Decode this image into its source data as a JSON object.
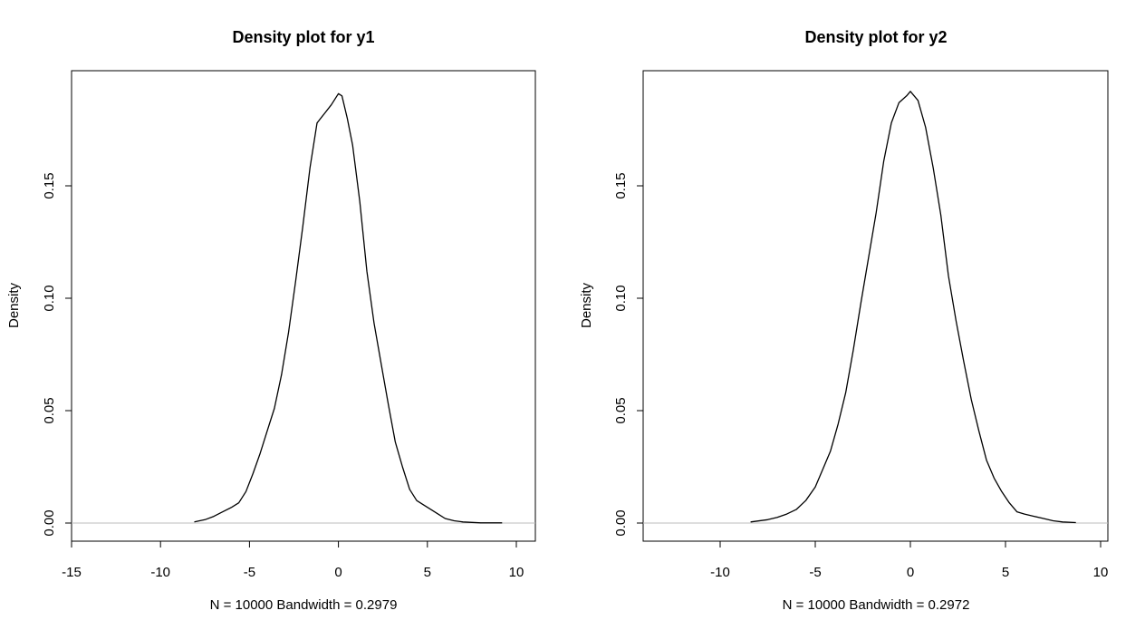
{
  "figure": {
    "background": "#ffffff",
    "line_color": "#000000",
    "baseline_color": "#bebebe"
  },
  "chart_data": [
    {
      "type": "line",
      "title": "Density plot for y1",
      "xlabel": "N = 10000   Bandwidth = 0.2979",
      "ylabel": "Density",
      "xlim": [
        -15,
        10
      ],
      "ylim": [
        0,
        0.19
      ],
      "xticks": [
        -15,
        -10,
        -5,
        0,
        5,
        10
      ],
      "xtick_labels": [
        "-15",
        "-10",
        "-5",
        "0",
        "5",
        "10"
      ],
      "yticks": [
        0.0,
        0.05,
        0.1,
        0.15
      ],
      "ytick_labels": [
        "0.00",
        "0.05",
        "0.10",
        "0.15"
      ],
      "grid": false,
      "series": [
        {
          "x": [
            -8.1,
            -7.5,
            -7.0,
            -6.5,
            -6.0,
            -5.6,
            -5.2,
            -4.8,
            -4.4,
            -4.0,
            -3.6,
            -3.2,
            -2.8,
            -2.4,
            -2.0,
            -1.6,
            -1.2,
            -0.8,
            -0.4,
            0.0,
            0.2,
            0.5,
            0.8,
            1.2,
            1.6,
            2.0,
            2.4,
            2.8,
            3.2,
            3.6,
            4.0,
            4.4,
            4.8,
            5.2,
            5.6,
            6.0,
            6.5,
            7.0,
            7.5,
            8.0,
            8.5,
            9.2
          ],
          "y": [
            0.0005,
            0.0015,
            0.003,
            0.005,
            0.007,
            0.009,
            0.014,
            0.022,
            0.031,
            0.041,
            0.051,
            0.066,
            0.085,
            0.108,
            0.132,
            0.158,
            0.178,
            0.182,
            0.186,
            0.191,
            0.19,
            0.18,
            0.168,
            0.143,
            0.112,
            0.089,
            0.071,
            0.053,
            0.036,
            0.025,
            0.015,
            0.01,
            0.008,
            0.006,
            0.004,
            0.002,
            0.001,
            0.0005,
            0.0003,
            0.0001,
            0.0001,
            0.0001
          ]
        }
      ]
    },
    {
      "type": "line",
      "title": "Density plot for y2",
      "xlabel": "N = 10000   Bandwidth = 0.2972",
      "ylabel": "Density",
      "xlim": [
        -14.5,
        10
      ],
      "ylim": [
        0,
        0.19
      ],
      "xticks": [
        -10,
        -5,
        0,
        5,
        10
      ],
      "xtick_labels": [
        "-10",
        "-5",
        "0",
        "5",
        "10"
      ],
      "yticks": [
        0.0,
        0.05,
        0.1,
        0.15
      ],
      "ytick_labels": [
        "0.00",
        "0.05",
        "0.10",
        "0.15"
      ],
      "grid": false,
      "series": [
        {
          "x": [
            -8.4,
            -7.5,
            -7.0,
            -6.5,
            -6.0,
            -5.5,
            -5.0,
            -4.6,
            -4.2,
            -3.8,
            -3.4,
            -3.0,
            -2.6,
            -2.2,
            -1.8,
            -1.4,
            -1.0,
            -0.6,
            -0.2,
            0.0,
            0.4,
            0.8,
            1.2,
            1.6,
            2.0,
            2.4,
            2.8,
            3.2,
            3.6,
            4.0,
            4.4,
            4.8,
            5.2,
            5.6,
            6.0,
            6.5,
            7.0,
            7.5,
            8.0,
            8.7
          ],
          "y": [
            0.0005,
            0.0015,
            0.0025,
            0.004,
            0.006,
            0.01,
            0.016,
            0.024,
            0.032,
            0.044,
            0.058,
            0.077,
            0.098,
            0.118,
            0.138,
            0.161,
            0.178,
            0.187,
            0.19,
            0.192,
            0.188,
            0.176,
            0.158,
            0.137,
            0.11,
            0.09,
            0.072,
            0.055,
            0.041,
            0.028,
            0.02,
            0.014,
            0.009,
            0.005,
            0.004,
            0.003,
            0.002,
            0.001,
            0.0005,
            0.0002
          ]
        }
      ]
    }
  ]
}
